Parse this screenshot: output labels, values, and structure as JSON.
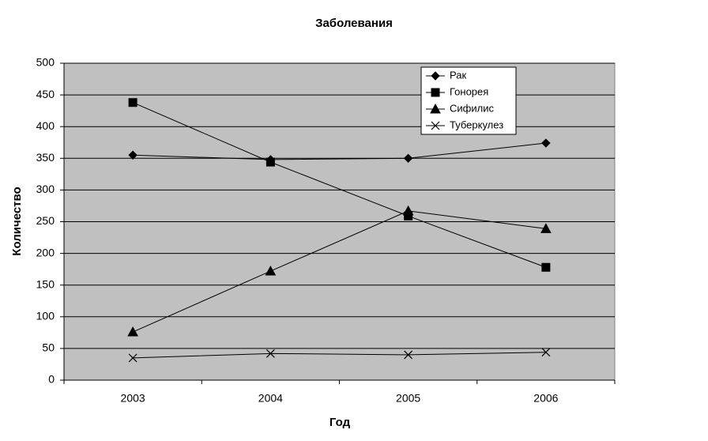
{
  "chart_data": {
    "type": "line",
    "title": "Заболевания",
    "x_label": "Год",
    "y_label": "Количество",
    "categories": [
      "2003",
      "2004",
      "2005",
      "2006"
    ],
    "ylim": [
      0,
      500
    ],
    "yticks": [
      0,
      50,
      100,
      150,
      200,
      250,
      300,
      350,
      400,
      450,
      500
    ],
    "grid": true,
    "legend": "top-right",
    "series": [
      {
        "name": "Рак",
        "color": "#000000",
        "marker": "diamond",
        "values": [
          355,
          348,
          350,
          374
        ]
      },
      {
        "name": "Гонорея",
        "color": "#000000",
        "marker": "square",
        "values": [
          438,
          344,
          259,
          178
        ]
      },
      {
        "name": "Сифилис",
        "color": "#000000",
        "marker": "triangle",
        "values": [
          76,
          172,
          267,
          239
        ]
      },
      {
        "name": "Туберкулез",
        "color": "#000000",
        "marker": "x",
        "values": [
          35,
          42,
          40,
          44
        ]
      }
    ]
  }
}
